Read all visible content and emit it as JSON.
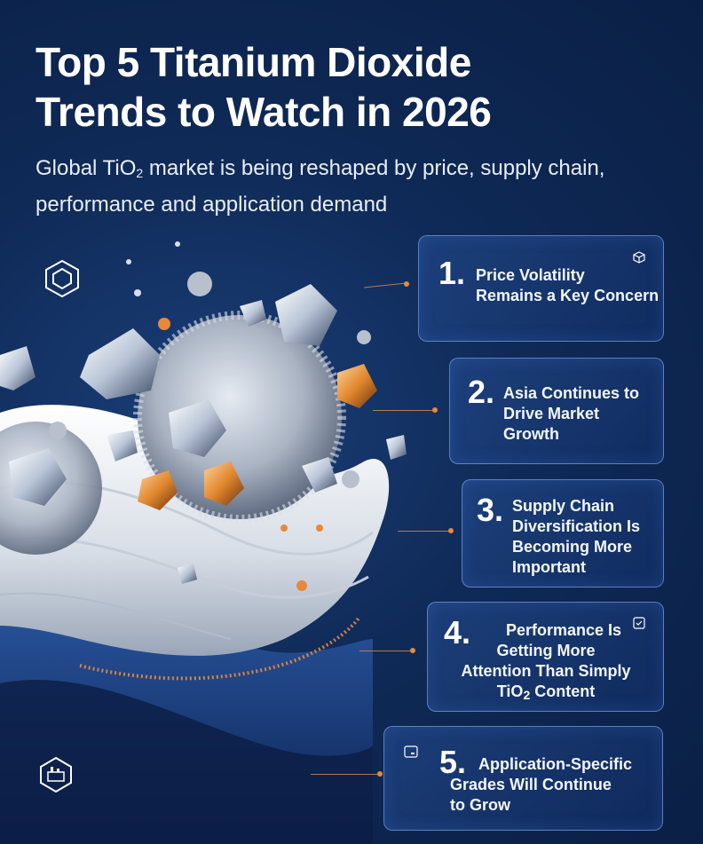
{
  "title": {
    "line1": "Top 5 Titanium Dioxide",
    "line2": "Trends to Watch in 2026"
  },
  "subtitle": {
    "line1_a": "Global TiO",
    "line1_sub": "2",
    "line1_b": " market is being reshaped by price, supply chain,",
    "line2": "performance and application demand"
  },
  "trends": [
    {
      "number": "1.",
      "lines": [
        "Price Volatility",
        "Remains a Key Concern"
      ],
      "icon": "cube-icon"
    },
    {
      "number": "2.",
      "lines": [
        "Asia Continues to",
        "Drive Market",
        "Growth"
      ]
    },
    {
      "number": "3.",
      "lines": [
        "Supply Chain",
        "Diversification Is",
        "Becoming More",
        "Important"
      ]
    },
    {
      "number": "4.",
      "lines": [
        "Performance Is",
        "Getting More",
        "Attention Than Simply"
      ],
      "last_a": "TiO",
      "last_sub": "2",
      "last_b": " Content",
      "icon": "check-box-icon"
    },
    {
      "number": "5.",
      "lines": [
        "Application-Specific",
        "Grades Will Continue",
        "to Grow"
      ],
      "icon": "card-icon"
    }
  ],
  "colors": {
    "background": "#0f2a57",
    "accent": "#e8893a",
    "card_border": "#96beff"
  },
  "decor_icons": [
    "hexagon-logo-icon",
    "factory-badge-icon"
  ]
}
